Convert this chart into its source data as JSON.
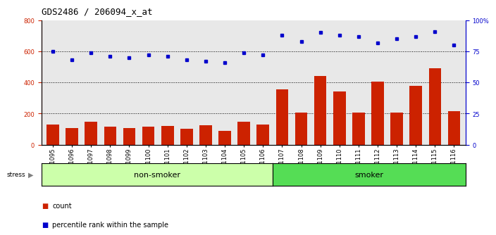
{
  "title": "GDS2486 / 206094_x_at",
  "samples": [
    "GSM101095",
    "GSM101096",
    "GSM101097",
    "GSM101098",
    "GSM101099",
    "GSM101100",
    "GSM101101",
    "GSM101102",
    "GSM101103",
    "GSM101104",
    "GSM101105",
    "GSM101106",
    "GSM101107",
    "GSM101108",
    "GSM101109",
    "GSM101110",
    "GSM101111",
    "GSM101112",
    "GSM101113",
    "GSM101114",
    "GSM101115",
    "GSM101116"
  ],
  "counts": [
    130,
    105,
    148,
    115,
    108,
    115,
    120,
    102,
    125,
    90,
    147,
    132,
    355,
    208,
    440,
    340,
    208,
    405,
    205,
    380,
    490,
    215
  ],
  "percentile": [
    75,
    68,
    74,
    71,
    70,
    72,
    71,
    68,
    67,
    66,
    74,
    72,
    88,
    83,
    90,
    88,
    87,
    82,
    85,
    87,
    91,
    80
  ],
  "non_smoker_count": 12,
  "smoker_count": 10,
  "bar_color": "#cc2200",
  "dot_color": "#0000cc",
  "non_smoker_color": "#ccffaa",
  "smoker_color": "#55dd55",
  "plot_bg_color": "#e8e8e8",
  "left_ylim": [
    0,
    800
  ],
  "right_ylim": [
    0,
    100
  ],
  "left_yticks": [
    0,
    200,
    400,
    600,
    800
  ],
  "right_yticks": [
    0,
    25,
    50,
    75,
    100
  ],
  "right_yticklabels": [
    "0",
    "25",
    "50",
    "75",
    "100%"
  ],
  "grid_values": [
    200,
    400,
    600
  ],
  "title_fontsize": 9,
  "tick_fontsize": 6,
  "band_fontsize": 8,
  "legend_fontsize": 7,
  "stress_label": "stress",
  "non_smoker_label": "non-smoker",
  "smoker_label": "smoker",
  "legend_count_label": "count",
  "legend_pct_label": "percentile rank within the sample"
}
